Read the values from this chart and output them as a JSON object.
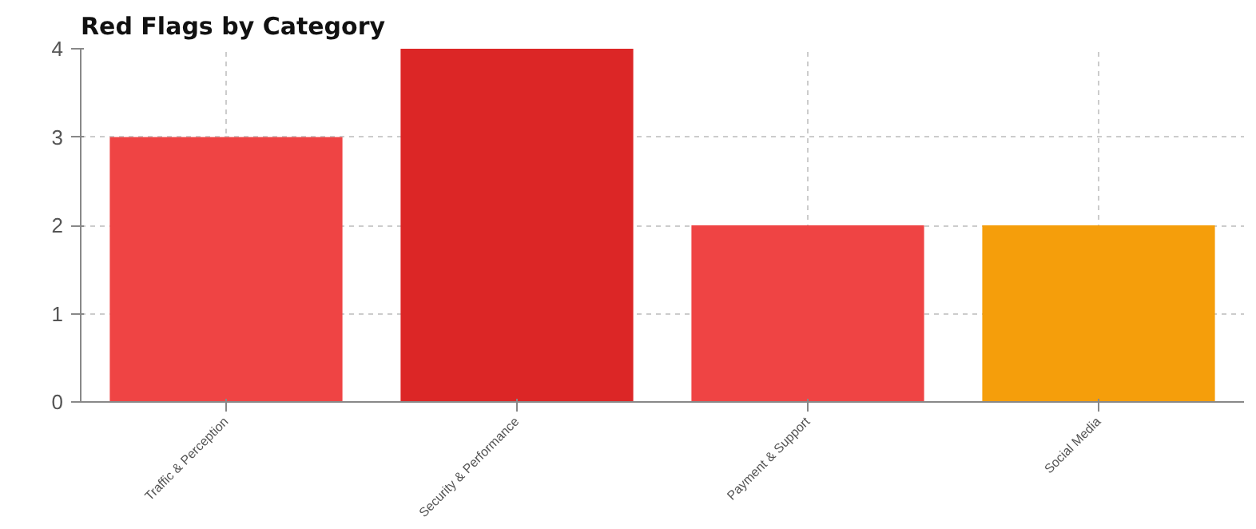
{
  "chart_data": {
    "type": "bar",
    "title": "Red Flags by Category",
    "categories": [
      "Traffic & Perception",
      "Security & Performance",
      "Payment & Support",
      "Social Media"
    ],
    "values": [
      3,
      4,
      2,
      2
    ],
    "colors": [
      "#ef4444",
      "#dc2626",
      "#ef4444",
      "#f59e0b"
    ],
    "ylim": [
      0,
      4
    ],
    "yticks": [
      0,
      1,
      2,
      3,
      4
    ],
    "grid": true
  }
}
